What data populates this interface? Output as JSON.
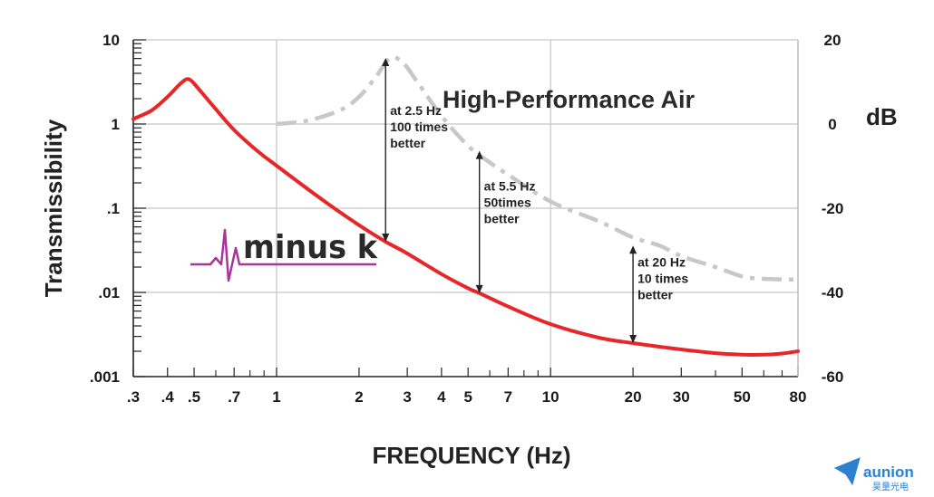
{
  "chart_data": {
    "type": "line",
    "x_scale": "log",
    "y_scale": "log",
    "xlim": [
      0.3,
      80
    ],
    "ylim": [
      0.001,
      10
    ],
    "y2lim": [
      -60,
      20
    ],
    "grid": true,
    "xlabel": "FREQUENCY (Hz)",
    "ylabel": "Transmissibility",
    "y2label": "dB",
    "x_ticks": [
      {
        "value": 0.3,
        "label": ".3"
      },
      {
        "value": 0.4,
        "label": ".4"
      },
      {
        "value": 0.5,
        "label": ".5"
      },
      {
        "value": 0.7,
        "label": ".7"
      },
      {
        "value": 1,
        "label": "1"
      },
      {
        "value": 2,
        "label": "2"
      },
      {
        "value": 3,
        "label": "3"
      },
      {
        "value": 4,
        "label": "4"
      },
      {
        "value": 5,
        "label": "5"
      },
      {
        "value": 7,
        "label": "7"
      },
      {
        "value": 10,
        "label": "10"
      },
      {
        "value": 20,
        "label": "20"
      },
      {
        "value": 30,
        "label": "30"
      },
      {
        "value": 50,
        "label": "50"
      },
      {
        "value": 80,
        "label": "80"
      }
    ],
    "y_ticks": [
      {
        "value": 10,
        "label": "10"
      },
      {
        "value": 1,
        "label": "1"
      },
      {
        "value": 0.1,
        "label": ".1"
      },
      {
        "value": 0.01,
        "label": ".01"
      },
      {
        "value": 0.001,
        "label": ".001"
      }
    ],
    "y2_ticks": [
      {
        "value": 20,
        "label": "20"
      },
      {
        "value": 0,
        "label": "0"
      },
      {
        "value": -20,
        "label": "-20"
      },
      {
        "value": -40,
        "label": "-40"
      },
      {
        "value": -60,
        "label": "-60"
      }
    ],
    "series": [
      {
        "name": "minus k",
        "color": "#e8262a",
        "style": "solid",
        "x": [
          0.3,
          0.35,
          0.4,
          0.45,
          0.48,
          0.52,
          0.6,
          0.7,
          0.85,
          1,
          1.5,
          2,
          2.5,
          3,
          4,
          5,
          5.5,
          7,
          10,
          15,
          20,
          30,
          40,
          50,
          60,
          70,
          80
        ],
        "y": [
          1.15,
          1.45,
          2.1,
          3.1,
          3.4,
          2.6,
          1.5,
          0.85,
          0.48,
          0.32,
          0.12,
          0.063,
          0.04,
          0.029,
          0.0165,
          0.0112,
          0.0098,
          0.0068,
          0.0042,
          0.0029,
          0.0025,
          0.0021,
          0.0019,
          0.00182,
          0.00182,
          0.00188,
          0.002
        ]
      },
      {
        "name": "High-Performance Air",
        "color": "#c8c8c8",
        "style": "dashed",
        "x": [
          1,
          1.3,
          1.7,
          2,
          2.3,
          2.6,
          2.9,
          3.3,
          4,
          5,
          6,
          7,
          10,
          15,
          20,
          25,
          30,
          40,
          50,
          60,
          70,
          80
        ],
        "y": [
          1.0,
          1.1,
          1.45,
          2.1,
          3.6,
          6.1,
          5.3,
          3.0,
          1.25,
          0.55,
          0.35,
          0.25,
          0.12,
          0.07,
          0.045,
          0.036,
          0.027,
          0.02,
          0.0155,
          0.0145,
          0.0143,
          0.0142
        ]
      }
    ],
    "annotations": [
      {
        "x": 2.5,
        "y_from": 0.04,
        "y_to": 6.1,
        "lines": [
          "at 2.5 Hz",
          "100 times",
          "better"
        ]
      },
      {
        "x": 5.5,
        "y_from": 0.0098,
        "y_to": 0.48,
        "lines": [
          "at 5.5 Hz",
          "50times",
          "better"
        ]
      },
      {
        "x": 20,
        "y_from": 0.0025,
        "y_to": 0.036,
        "lines": [
          "at 20 Hz",
          "10 times",
          "better"
        ]
      }
    ],
    "curve_label": "High-Performance Air"
  },
  "brand": {
    "name": "minus k",
    "color": "#a6359c"
  },
  "watermark": {
    "name": "aunion",
    "subtitle": "昊量光电",
    "color": "#2d7fd0"
  }
}
